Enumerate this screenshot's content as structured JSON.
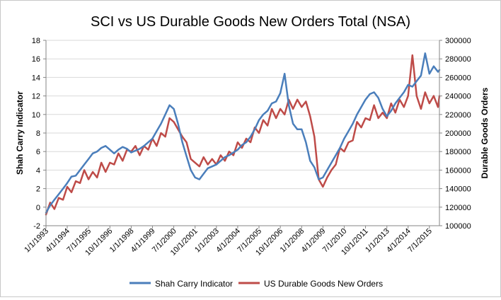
{
  "chart_data": {
    "type": "line",
    "title": "SCI vs US Durable Goods New Orders Total (NSA)",
    "ylabel_left": "Shah Carry Indicator",
    "ylabel_right": "Durable Goods Orders",
    "xlabel": "",
    "x_range": [
      "1993-01-01",
      "2016-02-01"
    ],
    "ylim_left": [
      -2,
      18
    ],
    "ylim_right": [
      100000,
      300000
    ],
    "y_ticks_left": [
      "-2",
      "0",
      "2",
      "4",
      "6",
      "8",
      "10",
      "12",
      "14",
      "16",
      "18"
    ],
    "y_ticks_right": [
      "100000",
      "120000",
      "140000",
      "160000",
      "180000",
      "200000",
      "220000",
      "240000",
      "260000",
      "280000",
      "300000"
    ],
    "x_tick_labels": [
      "1/1/1993",
      "4/1/1994",
      "7/1/1995",
      "10/1/1996",
      "1/1/1998",
      "4/1/1999",
      "7/1/2000",
      "10/1/2001",
      "1/1/2003",
      "4/1/2004",
      "7/1/2005",
      "10/1/2006",
      "1/1/2008",
      "4/1/2009",
      "7/1/2010",
      "10/1/2011",
      "1/1/2013",
      "4/1/2014",
      "7/1/2015"
    ],
    "x_tick_dates": [
      "1993-01-01",
      "1994-04-01",
      "1995-07-01",
      "1996-10-01",
      "1998-01-01",
      "1999-04-01",
      "2000-07-01",
      "2001-10-01",
      "2003-01-01",
      "2004-04-01",
      "2005-07-01",
      "2006-10-01",
      "2008-01-01",
      "2009-04-01",
      "2010-07-01",
      "2011-10-01",
      "2013-01-01",
      "2014-04-01",
      "2015-07-01"
    ],
    "grid": "horizontal",
    "legend_position": "bottom",
    "series": [
      {
        "name": "Shah Carry Indicator",
        "axis": "left",
        "color": "#4a7ebb",
        "points": [
          [
            "1993-01-01",
            -0.6
          ],
          [
            "1993-04-01",
            0.2
          ],
          [
            "1993-07-01",
            0.8
          ],
          [
            "1993-10-01",
            1.4
          ],
          [
            "1994-01-01",
            2.0
          ],
          [
            "1994-04-01",
            2.6
          ],
          [
            "1994-07-01",
            3.3
          ],
          [
            "1994-10-01",
            3.4
          ],
          [
            "1995-01-01",
            4.0
          ],
          [
            "1995-04-01",
            4.6
          ],
          [
            "1995-07-01",
            5.2
          ],
          [
            "1995-10-01",
            5.8
          ],
          [
            "1996-01-01",
            6.0
          ],
          [
            "1996-04-01",
            6.4
          ],
          [
            "1996-07-01",
            6.6
          ],
          [
            "1996-10-01",
            6.2
          ],
          [
            "1997-01-01",
            5.8
          ],
          [
            "1997-04-01",
            6.2
          ],
          [
            "1997-07-01",
            6.5
          ],
          [
            "1997-10-01",
            6.3
          ],
          [
            "1998-01-01",
            5.9
          ],
          [
            "1998-04-01",
            6.1
          ],
          [
            "1998-07-01",
            6.3
          ],
          [
            "1998-10-01",
            6.6
          ],
          [
            "1999-01-01",
            7.0
          ],
          [
            "1999-04-01",
            7.4
          ],
          [
            "1999-07-01",
            8.2
          ],
          [
            "1999-10-01",
            9.0
          ],
          [
            "2000-01-01",
            10.0
          ],
          [
            "2000-04-01",
            11.0
          ],
          [
            "2000-07-01",
            10.6
          ],
          [
            "2000-10-01",
            9.0
          ],
          [
            "2001-01-01",
            7.0
          ],
          [
            "2001-04-01",
            5.5
          ],
          [
            "2001-07-01",
            4.0
          ],
          [
            "2001-10-01",
            3.2
          ],
          [
            "2002-01-01",
            3.0
          ],
          [
            "2002-04-01",
            3.6
          ],
          [
            "2002-07-01",
            4.2
          ],
          [
            "2002-10-01",
            4.4
          ],
          [
            "2003-01-01",
            4.6
          ],
          [
            "2003-04-01",
            5.0
          ],
          [
            "2003-07-01",
            5.4
          ],
          [
            "2003-10-01",
            5.6
          ],
          [
            "2004-01-01",
            5.9
          ],
          [
            "2004-04-01",
            6.2
          ],
          [
            "2004-07-01",
            6.7
          ],
          [
            "2004-10-01",
            7.0
          ],
          [
            "2005-01-01",
            7.6
          ],
          [
            "2005-04-01",
            8.4
          ],
          [
            "2005-07-01",
            9.4
          ],
          [
            "2005-10-01",
            10.0
          ],
          [
            "2006-01-01",
            10.4
          ],
          [
            "2006-04-01",
            11.2
          ],
          [
            "2006-07-01",
            11.4
          ],
          [
            "2006-10-01",
            12.3
          ],
          [
            "2007-01-01",
            14.4
          ],
          [
            "2007-04-01",
            11.0
          ],
          [
            "2007-07-01",
            9.0
          ],
          [
            "2007-10-01",
            8.4
          ],
          [
            "2008-01-01",
            8.4
          ],
          [
            "2008-04-01",
            7.0
          ],
          [
            "2008-07-01",
            5.0
          ],
          [
            "2008-10-01",
            4.3
          ],
          [
            "2009-01-01",
            3.0
          ],
          [
            "2009-04-01",
            3.2
          ],
          [
            "2009-07-01",
            4.0
          ],
          [
            "2009-10-01",
            4.8
          ],
          [
            "2010-01-01",
            5.6
          ],
          [
            "2010-04-01",
            6.4
          ],
          [
            "2010-07-01",
            7.4
          ],
          [
            "2010-10-01",
            8.2
          ],
          [
            "2011-01-01",
            9.0
          ],
          [
            "2011-04-01",
            10.0
          ],
          [
            "2011-07-01",
            10.8
          ],
          [
            "2011-10-01",
            11.6
          ],
          [
            "2012-01-01",
            12.2
          ],
          [
            "2012-04-01",
            12.4
          ],
          [
            "2012-07-01",
            11.8
          ],
          [
            "2012-10-01",
            10.6
          ],
          [
            "2013-01-01",
            9.8
          ],
          [
            "2013-04-01",
            10.4
          ],
          [
            "2013-07-01",
            11.2
          ],
          [
            "2013-10-01",
            11.8
          ],
          [
            "2014-01-01",
            12.4
          ],
          [
            "2014-04-01",
            13.2
          ],
          [
            "2014-07-01",
            13.0
          ],
          [
            "2014-10-01",
            13.6
          ],
          [
            "2015-01-01",
            14.2
          ],
          [
            "2015-04-01",
            16.6
          ],
          [
            "2015-07-01",
            14.4
          ],
          [
            "2015-10-01",
            15.2
          ],
          [
            "2016-01-01",
            14.6
          ],
          [
            "2016-02-01",
            14.8
          ]
        ]
      },
      {
        "name": "US Durable Goods New Orders",
        "axis": "right",
        "color": "#be4b48",
        "points": [
          [
            "1993-01-01",
            112000
          ],
          [
            "1993-04-01",
            125000
          ],
          [
            "1993-07-01",
            118000
          ],
          [
            "1993-10-01",
            130000
          ],
          [
            "1994-01-01",
            128000
          ],
          [
            "1994-04-01",
            142000
          ],
          [
            "1994-07-01",
            136000
          ],
          [
            "1994-10-01",
            148000
          ],
          [
            "1995-01-01",
            146000
          ],
          [
            "1995-04-01",
            160000
          ],
          [
            "1995-07-01",
            150000
          ],
          [
            "1995-10-01",
            158000
          ],
          [
            "1996-01-01",
            152000
          ],
          [
            "1996-04-01",
            168000
          ],
          [
            "1996-07-01",
            158000
          ],
          [
            "1996-10-01",
            168000
          ],
          [
            "1997-01-01",
            166000
          ],
          [
            "1997-04-01",
            178000
          ],
          [
            "1997-07-01",
            170000
          ],
          [
            "1997-10-01",
            182000
          ],
          [
            "1998-01-01",
            180000
          ],
          [
            "1998-04-01",
            186000
          ],
          [
            "1998-07-01",
            176000
          ],
          [
            "1998-10-01",
            186000
          ],
          [
            "1999-01-01",
            182000
          ],
          [
            "1999-04-01",
            194000
          ],
          [
            "1999-07-01",
            186000
          ],
          [
            "1999-10-01",
            200000
          ],
          [
            "2000-01-01",
            196000
          ],
          [
            "2000-04-01",
            216000
          ],
          [
            "2000-07-01",
            212000
          ],
          [
            "2000-10-01",
            204000
          ],
          [
            "2001-01-01",
            196000
          ],
          [
            "2001-04-01",
            190000
          ],
          [
            "2001-07-01",
            172000
          ],
          [
            "2001-10-01",
            168000
          ],
          [
            "2002-01-01",
            164000
          ],
          [
            "2002-04-01",
            174000
          ],
          [
            "2002-07-01",
            166000
          ],
          [
            "2002-10-01",
            172000
          ],
          [
            "2003-01-01",
            166000
          ],
          [
            "2003-04-01",
            176000
          ],
          [
            "2003-07-01",
            170000
          ],
          [
            "2003-10-01",
            180000
          ],
          [
            "2004-01-01",
            176000
          ],
          [
            "2004-04-01",
            190000
          ],
          [
            "2004-07-01",
            184000
          ],
          [
            "2004-10-01",
            194000
          ],
          [
            "2005-01-01",
            190000
          ],
          [
            "2005-04-01",
            206000
          ],
          [
            "2005-07-01",
            200000
          ],
          [
            "2005-10-01",
            214000
          ],
          [
            "2006-01-01",
            208000
          ],
          [
            "2006-04-01",
            226000
          ],
          [
            "2006-07-01",
            216000
          ],
          [
            "2006-10-01",
            226000
          ],
          [
            "2007-01-01",
            220000
          ],
          [
            "2007-04-01",
            236000
          ],
          [
            "2007-07-01",
            226000
          ],
          [
            "2007-10-01",
            236000
          ],
          [
            "2008-01-01",
            228000
          ],
          [
            "2008-04-01",
            234000
          ],
          [
            "2008-07-01",
            218000
          ],
          [
            "2008-10-01",
            196000
          ],
          [
            "2009-01-01",
            150000
          ],
          [
            "2009-04-01",
            142000
          ],
          [
            "2009-07-01",
            152000
          ],
          [
            "2009-10-01",
            160000
          ],
          [
            "2010-01-01",
            166000
          ],
          [
            "2010-04-01",
            184000
          ],
          [
            "2010-07-01",
            180000
          ],
          [
            "2010-10-01",
            190000
          ],
          [
            "2011-01-01",
            192000
          ],
          [
            "2011-04-01",
            212000
          ],
          [
            "2011-07-01",
            206000
          ],
          [
            "2011-10-01",
            216000
          ],
          [
            "2012-01-01",
            214000
          ],
          [
            "2012-04-01",
            230000
          ],
          [
            "2012-07-01",
            216000
          ],
          [
            "2012-10-01",
            222000
          ],
          [
            "2013-01-01",
            216000
          ],
          [
            "2013-04-01",
            232000
          ],
          [
            "2013-07-01",
            222000
          ],
          [
            "2013-10-01",
            236000
          ],
          [
            "2014-01-01",
            228000
          ],
          [
            "2014-04-01",
            240000
          ],
          [
            "2014-07-01",
            284000
          ],
          [
            "2014-10-01",
            240000
          ],
          [
            "2015-01-01",
            226000
          ],
          [
            "2015-04-01",
            244000
          ],
          [
            "2015-07-01",
            232000
          ],
          [
            "2015-10-01",
            240000
          ],
          [
            "2016-01-01",
            228000
          ],
          [
            "2016-02-01",
            240000
          ]
        ]
      }
    ]
  }
}
